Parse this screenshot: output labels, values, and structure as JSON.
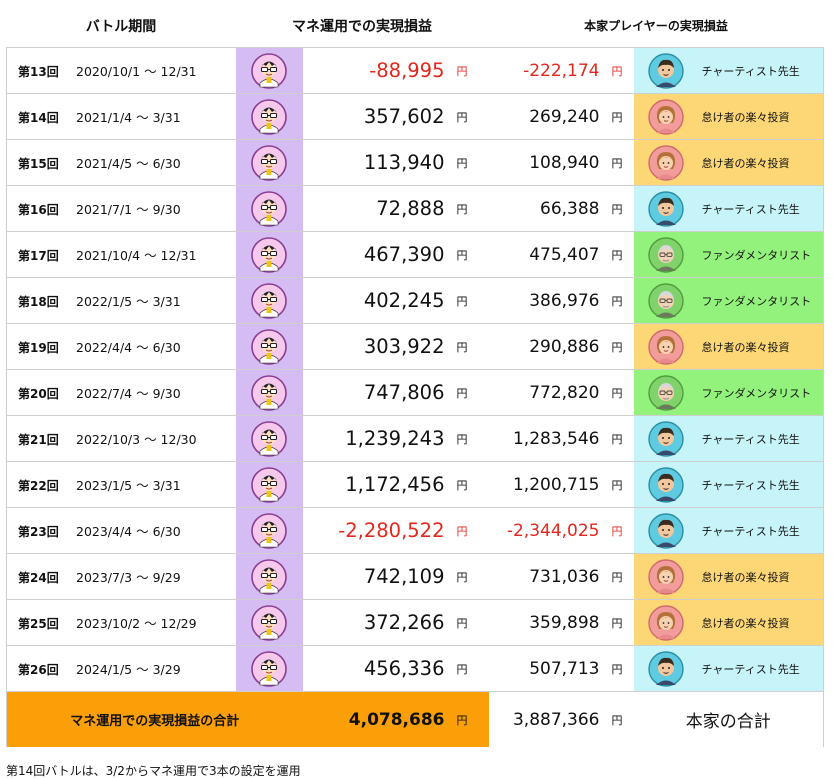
{
  "headers": {
    "period": "バトル期間",
    "mane": "マネ運用での実現損益",
    "player": "本家プレイヤーの実現損益"
  },
  "yen": "円",
  "rows": [
    {
      "round": "第13回",
      "period": "2020/10/1 〜 12/31",
      "mane": "-88,995",
      "player_value": "-222,174",
      "player_name": "チャーティスト先生",
      "player_type": "chartist"
    },
    {
      "round": "第14回",
      "period": "2021/1/4 〜 3/31",
      "mane": "357,602",
      "player_value": "269,240",
      "player_name": "怠け者の楽々投資",
      "player_type": "lazy"
    },
    {
      "round": "第15回",
      "period": "2021/4/5 〜 6/30",
      "mane": "113,940",
      "player_value": "108,940",
      "player_name": "怠け者の楽々投資",
      "player_type": "lazy"
    },
    {
      "round": "第16回",
      "period": "2021/7/1 〜 9/30",
      "mane": "72,888",
      "player_value": "66,388",
      "player_name": "チャーティスト先生",
      "player_type": "chartist"
    },
    {
      "round": "第17回",
      "period": "2021/10/4 〜 12/31",
      "mane": "467,390",
      "player_value": "475,407",
      "player_name": "ファンダメンタリスト",
      "player_type": "fundamentalist"
    },
    {
      "round": "第18回",
      "period": "2022/1/5 〜 3/31",
      "mane": "402,245",
      "player_value": "386,976",
      "player_name": "ファンダメンタリスト",
      "player_type": "fundamentalist"
    },
    {
      "round": "第19回",
      "period": "2022/4/4 〜 6/30",
      "mane": "303,922",
      "player_value": "290,886",
      "player_name": "怠け者の楽々投資",
      "player_type": "lazy"
    },
    {
      "round": "第20回",
      "period": "2022/7/4 〜 9/30",
      "mane": "747,806",
      "player_value": "772,820",
      "player_name": "ファンダメンタリスト",
      "player_type": "fundamentalist"
    },
    {
      "round": "第21回",
      "period": "2022/10/3 〜 12/30",
      "mane": "1,239,243",
      "player_value": "1,283,546",
      "player_name": "チャーティスト先生",
      "player_type": "chartist"
    },
    {
      "round": "第22回",
      "period": "2023/1/5 〜 3/31",
      "mane": "1,172,456",
      "player_value": "1,200,715",
      "player_name": "チャーティスト先生",
      "player_type": "chartist"
    },
    {
      "round": "第23回",
      "period": "2023/4/4 〜 6/30",
      "mane": "-2,280,522",
      "player_value": "-2,344,025",
      "player_name": "チャーティスト先生",
      "player_type": "chartist"
    },
    {
      "round": "第24回",
      "period": "2023/7/3 〜 9/29",
      "mane": "742,109",
      "player_value": "731,036",
      "player_name": "怠け者の楽々投資",
      "player_type": "lazy"
    },
    {
      "round": "第25回",
      "period": "2023/10/2 〜 12/29",
      "mane": "372,266",
      "player_value": "359,898",
      "player_name": "怠け者の楽々投資",
      "player_type": "lazy"
    },
    {
      "round": "第26回",
      "period": "2024/1/5 〜 3/29",
      "mane": "456,336",
      "player_value": "507,713",
      "player_name": "チャーティスト先生",
      "player_type": "chartist"
    }
  ],
  "total": {
    "label": "マネ運用での実現損益の合計",
    "mane": "4,078,686",
    "player_value": "3,887,366",
    "player_label": "本家の合計"
  },
  "note": "第14回バトルは、3/2からマネ運用で3本の設定を運用",
  "colors": {
    "mane_column": "#d5bdf4",
    "negative": "#e4261d",
    "total_highlight": "#fa9f07",
    "chartist": "#c7f4f8",
    "lazy": "#fdd776",
    "fundamentalist": "#93f27b"
  }
}
